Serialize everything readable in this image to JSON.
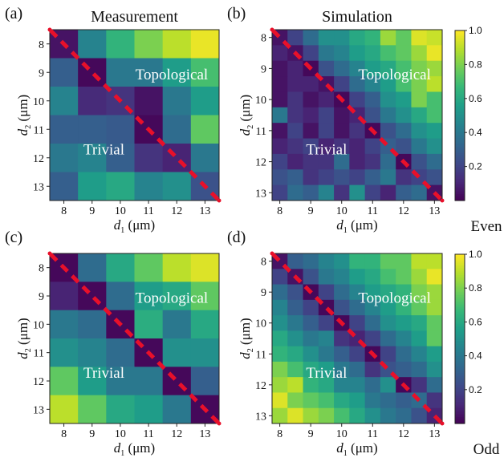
{
  "chart_data": [
    {
      "type": "heatmap",
      "panel": "(a)",
      "title": "Measurement",
      "xlabel_sym": "d",
      "xlabel_sub": "1",
      "xlabel_unit": "(μm)",
      "ylabel_sym": "d",
      "ylabel_sub": "2",
      "ylabel_unit": "(μm)",
      "x": [
        8,
        9,
        10,
        11,
        12,
        13
      ],
      "y": [
        8,
        9,
        10,
        11,
        12,
        13
      ],
      "xticks": [
        "8",
        "9",
        "10",
        "11",
        "12",
        "13"
      ],
      "yticks": [
        "8",
        "9",
        "10",
        "11",
        "12",
        "13"
      ],
      "region_labels": {
        "upper": "Topological",
        "lower": "Trivial"
      },
      "values": [
        [
          0.05,
          0.45,
          0.65,
          0.8,
          0.9,
          0.97
        ],
        [
          0.3,
          0.02,
          0.4,
          0.4,
          0.55,
          0.7
        ],
        [
          0.45,
          0.12,
          0.15,
          0.05,
          0.4,
          0.55
        ],
        [
          0.3,
          0.3,
          0.28,
          0.02,
          0.35,
          0.75
        ],
        [
          0.4,
          0.45,
          0.3,
          0.15,
          0.1,
          0.4
        ],
        [
          0.3,
          0.55,
          0.6,
          0.45,
          0.5,
          0.25
        ]
      ]
    },
    {
      "type": "heatmap",
      "panel": "(b)",
      "title": "Simulation",
      "xlabel_sym": "d",
      "xlabel_sub": "1",
      "xlabel_unit": "(μm)",
      "ylabel_sym": "d",
      "ylabel_sub": "2",
      "ylabel_unit": "(μm)",
      "x": [
        8,
        8.5,
        9,
        9.5,
        10,
        10.5,
        11,
        11.5,
        12,
        12.5,
        13
      ],
      "y": [
        8,
        8.5,
        9,
        9.5,
        10,
        10.5,
        11,
        11.5,
        12,
        12.5,
        13
      ],
      "xticks": [
        "8",
        "9",
        "10",
        "11",
        "12",
        "13"
      ],
      "yticks": [
        "8",
        "9",
        "10",
        "11",
        "12",
        "13"
      ],
      "region_labels": {
        "upper": "Topological",
        "lower": "Trivial"
      },
      "colorbar": {
        "range": [
          0,
          1
        ],
        "ticks": [
          "0.2",
          "0.4",
          "0.6",
          "0.8",
          "1.0"
        ],
        "label": "Even"
      },
      "values": [
        [
          0.05,
          0.2,
          0.35,
          0.5,
          0.5,
          0.6,
          0.65,
          0.85,
          0.75,
          0.95,
          0.92
        ],
        [
          0.1,
          0.05,
          0.2,
          0.4,
          0.45,
          0.55,
          0.6,
          0.7,
          0.75,
          0.85,
          0.97
        ],
        [
          0.05,
          0.1,
          0.02,
          0.25,
          0.35,
          0.45,
          0.55,
          0.6,
          0.7,
          0.8,
          0.85
        ],
        [
          0.05,
          0.1,
          0.1,
          0.05,
          0.2,
          0.35,
          0.45,
          0.55,
          0.7,
          0.8,
          0.9
        ],
        [
          0.05,
          0.15,
          0.05,
          0.1,
          0.02,
          0.2,
          0.3,
          0.5,
          0.55,
          0.8,
          0.7
        ],
        [
          0.4,
          0.15,
          0.1,
          0.2,
          0.05,
          0.1,
          0.25,
          0.4,
          0.5,
          0.6,
          0.7
        ],
        [
          0.05,
          0.2,
          0.05,
          0.2,
          0.05,
          0.15,
          0.02,
          0.25,
          0.35,
          0.5,
          0.55
        ],
        [
          0.1,
          0.15,
          0.2,
          0.1,
          0.15,
          0.1,
          0.2,
          0.3,
          0.25,
          0.4,
          0.5
        ],
        [
          0.2,
          0.1,
          0.15,
          0.15,
          0.35,
          0.1,
          0.15,
          0.35,
          0.02,
          0.25,
          0.35
        ],
        [
          0.25,
          0.3,
          0.15,
          0.2,
          0.25,
          0.2,
          0.3,
          0.4,
          0.15,
          0.2,
          0.25
        ],
        [
          0.2,
          0.35,
          0.3,
          0.45,
          0.15,
          0.5,
          0.2,
          0.1,
          0.3,
          0.35,
          0.05
        ]
      ]
    },
    {
      "type": "heatmap",
      "panel": "(c)",
      "title": "",
      "xlabel_sym": "d",
      "xlabel_sub": "1",
      "xlabel_unit": "(μm)",
      "ylabel_sym": "d",
      "ylabel_sub": "2",
      "ylabel_unit": "(μm)",
      "x": [
        8,
        9,
        10,
        11,
        12,
        13
      ],
      "y": [
        8,
        9,
        10,
        11,
        12,
        13
      ],
      "xticks": [
        "8",
        "9",
        "10",
        "11",
        "12",
        "13"
      ],
      "yticks": [
        "8",
        "9",
        "10",
        "11",
        "12",
        "13"
      ],
      "region_labels": {
        "upper": "Topological",
        "lower": "Trivial"
      },
      "values": [
        [
          0.02,
          0.35,
          0.6,
          0.75,
          0.9,
          0.95
        ],
        [
          0.1,
          0.02,
          0.35,
          0.55,
          0.6,
          0.75
        ],
        [
          0.4,
          0.35,
          0.02,
          0.62,
          0.4,
          0.6
        ],
        [
          0.5,
          0.45,
          0.35,
          0.02,
          0.5,
          0.5
        ],
        [
          0.75,
          0.55,
          0.4,
          0.4,
          0.02,
          0.3
        ],
        [
          0.9,
          0.75,
          0.6,
          0.55,
          0.4,
          0.02
        ]
      ]
    },
    {
      "type": "heatmap",
      "panel": "(d)",
      "title": "",
      "xlabel_sym": "d",
      "xlabel_sub": "1",
      "xlabel_unit": "(μm)",
      "ylabel_sym": "d",
      "ylabel_sub": "2",
      "ylabel_unit": "(μm)",
      "x": [
        8,
        8.5,
        9,
        9.5,
        10,
        10.5,
        11,
        11.5,
        12,
        12.5,
        13
      ],
      "y": [
        8,
        8.5,
        9,
        9.5,
        10,
        10.5,
        11,
        11.5,
        12,
        12.5,
        13
      ],
      "xticks": [
        "8",
        "9",
        "10",
        "11",
        "12",
        "13"
      ],
      "yticks": [
        "8",
        "9",
        "10",
        "11",
        "12",
        "13"
      ],
      "region_labels": {
        "upper": "Topological",
        "lower": "Trivial"
      },
      "colorbar": {
        "range": [
          0,
          1
        ],
        "ticks": [
          "0.2",
          "0.4",
          "0.6",
          "0.8",
          "1.0"
        ],
        "label": "Odd"
      },
      "values": [
        [
          0.05,
          0.3,
          0.35,
          0.45,
          0.5,
          0.65,
          0.65,
          0.75,
          0.75,
          0.9,
          0.9
        ],
        [
          0.2,
          0.05,
          0.25,
          0.4,
          0.45,
          0.55,
          0.6,
          0.7,
          0.75,
          0.85,
          0.97
        ],
        [
          0.35,
          0.25,
          0.02,
          0.2,
          0.35,
          0.45,
          0.55,
          0.6,
          0.65,
          0.8,
          0.85
        ],
        [
          0.45,
          0.3,
          0.2,
          0.02,
          0.25,
          0.35,
          0.45,
          0.55,
          0.65,
          0.75,
          0.85
        ],
        [
          0.5,
          0.4,
          0.3,
          0.2,
          0.02,
          0.2,
          0.35,
          0.5,
          0.55,
          0.6,
          0.75
        ],
        [
          0.6,
          0.5,
          0.4,
          0.45,
          0.15,
          0.1,
          0.2,
          0.35,
          0.45,
          0.55,
          0.75
        ],
        [
          0.65,
          0.6,
          0.5,
          0.4,
          0.3,
          0.2,
          0.02,
          0.2,
          0.35,
          0.45,
          0.55
        ],
        [
          0.8,
          0.7,
          0.6,
          0.55,
          0.4,
          0.35,
          0.15,
          0.25,
          0.3,
          0.35,
          0.5
        ],
        [
          0.85,
          0.9,
          0.65,
          0.6,
          0.45,
          0.45,
          0.35,
          0.5,
          0.02,
          0.15,
          0.35
        ],
        [
          0.95,
          0.8,
          0.75,
          0.7,
          0.6,
          0.55,
          0.4,
          0.35,
          0.3,
          0.35,
          0.15
        ],
        [
          0.85,
          0.95,
          0.85,
          0.8,
          0.7,
          0.6,
          0.5,
          0.4,
          0.35,
          0.25,
          0.1
        ]
      ]
    }
  ],
  "colors": {
    "diagonal": "#e8102a"
  }
}
